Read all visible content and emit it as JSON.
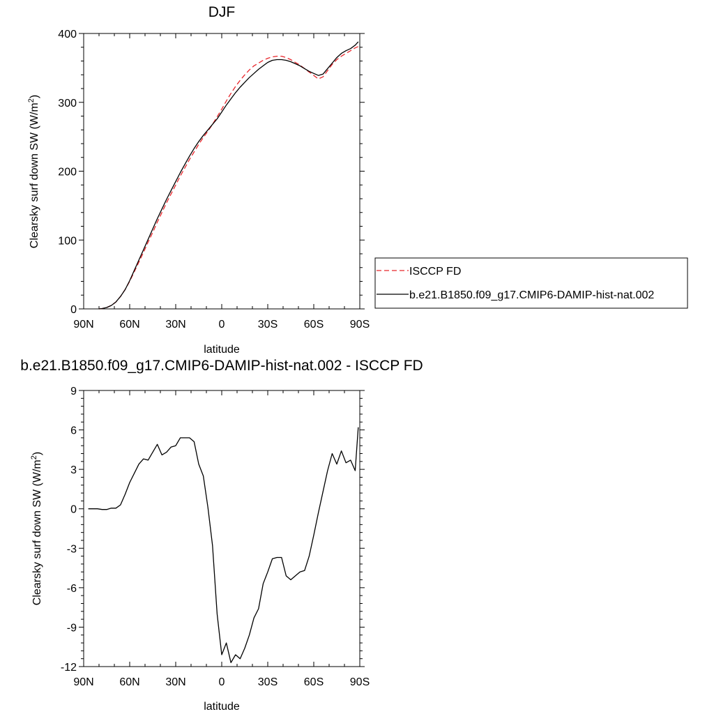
{
  "chart_data": [
    {
      "type": "line",
      "title": "DJF",
      "xlabel": "latitude",
      "ylabel": "Clearsky surf down SW (W/m",
      "ylabel_sup": "2",
      "ylabel_end": ")",
      "xlim": [
        90,
        -90
      ],
      "ylim": [
        0,
        400
      ],
      "xticks": [
        {
          "v": 90,
          "label": "90N"
        },
        {
          "v": 60,
          "label": "60N"
        },
        {
          "v": 30,
          "label": "30N"
        },
        {
          "v": 0,
          "label": "0"
        },
        {
          "v": -30,
          "label": "30S"
        },
        {
          "v": -60,
          "label": "60S"
        },
        {
          "v": -90,
          "label": "90S"
        }
      ],
      "yticks": [
        {
          "v": 0,
          "label": "0"
        },
        {
          "v": 100,
          "label": "100"
        },
        {
          "v": 200,
          "label": "200"
        },
        {
          "v": 300,
          "label": "300"
        },
        {
          "v": 400,
          "label": "400"
        }
      ],
      "legend_position": "right",
      "series": [
        {
          "name": "ISCCP FD",
          "color": "#e8262b",
          "dash": true,
          "x": [
            80,
            78,
            75,
            72,
            69,
            66,
            63,
            60,
            57,
            54,
            51,
            48,
            45,
            42,
            39,
            36,
            33,
            30,
            27,
            24,
            21,
            18,
            15,
            12,
            9,
            6,
            3,
            0,
            -3,
            -6,
            -9,
            -12,
            -15,
            -18,
            -21,
            -24,
            -27,
            -30,
            -33,
            -36,
            -39,
            -42,
            -45,
            -48,
            -51,
            -54,
            -57,
            -60,
            -63,
            -66,
            -69,
            -72,
            -75,
            -78,
            -81,
            -84,
            -87,
            -90
          ],
          "y": [
            0,
            0.5,
            2,
            5,
            10,
            18,
            28,
            40,
            54,
            68,
            82,
            97,
            111,
            126,
            140,
            154,
            167,
            180,
            193,
            205,
            217,
            228,
            239,
            249,
            258,
            268,
            279,
            290,
            302,
            313,
            323,
            332,
            340,
            347,
            353,
            357,
            361,
            364,
            366,
            367,
            367,
            365,
            362,
            358,
            354,
            349,
            344,
            339,
            334,
            337,
            346,
            355,
            362,
            367,
            371,
            375,
            379,
            382
          ]
        },
        {
          "name": "b.e21.B1850.f09_g17.CMIP6-DAMIP-hist-nat.002",
          "color": "#000000",
          "dash": false,
          "x": [
            80,
            78,
            75,
            72,
            69,
            66,
            63,
            60,
            57,
            54,
            51,
            48,
            45,
            42,
            39,
            36,
            33,
            30,
            27,
            24,
            21,
            18,
            15,
            12,
            9,
            6,
            3,
            0,
            -3,
            -6,
            -9,
            -12,
            -15,
            -18,
            -21,
            -24,
            -27,
            -30,
            -33,
            -36,
            -39,
            -42,
            -45,
            -48,
            -51,
            -54,
            -57,
            -60,
            -63,
            -66,
            -69,
            -72,
            -75,
            -78,
            -81,
            -84,
            -87,
            -89
          ],
          "y": [
            0,
            0.5,
            2,
            5,
            10,
            18,
            28,
            41,
            56,
            71,
            86,
            101,
            116,
            131,
            145,
            159,
            172,
            185,
            198,
            210,
            222,
            233,
            243,
            252,
            260,
            268,
            276,
            286,
            296,
            305,
            314,
            322,
            329,
            336,
            342,
            348,
            353,
            358,
            361,
            362,
            362,
            361,
            359,
            356,
            353,
            349,
            345,
            342,
            339,
            341,
            349,
            357,
            365,
            371,
            375,
            378,
            383,
            388
          ]
        }
      ]
    },
    {
      "type": "line",
      "title": "b.e21.B1850.f09_g17.CMIP6-DAMIP-hist-nat.002 - ISCCP FD",
      "xlabel": "latitude",
      "ylabel": "Clearsky surf down SW (W/m",
      "ylabel_sup": "2",
      "ylabel_end": ")",
      "xlim": [
        90,
        -90
      ],
      "ylim": [
        -12,
        9
      ],
      "xticks": [
        {
          "v": 90,
          "label": "90N"
        },
        {
          "v": 60,
          "label": "60N"
        },
        {
          "v": 30,
          "label": "30N"
        },
        {
          "v": 0,
          "label": "0"
        },
        {
          "v": -30,
          "label": "30S"
        },
        {
          "v": -60,
          "label": "60S"
        },
        {
          "v": -90,
          "label": "90S"
        }
      ],
      "yticks": [
        {
          "v": -12,
          "label": "-12"
        },
        {
          "v": -9,
          "label": "-9"
        },
        {
          "v": -6,
          "label": "-6"
        },
        {
          "v": -3,
          "label": "-3"
        },
        {
          "v": 0,
          "label": "0"
        },
        {
          "v": 3,
          "label": "3"
        },
        {
          "v": 6,
          "label": "6"
        },
        {
          "v": 9,
          "label": "9"
        }
      ],
      "series": [
        {
          "color": "#000000",
          "x": [
            87,
            84,
            81,
            78,
            75,
            72,
            69,
            66,
            63,
            60,
            57,
            54,
            51,
            48,
            45,
            42,
            39,
            36,
            33,
            30,
            27,
            24,
            21,
            18,
            15,
            12,
            9,
            6,
            3,
            0,
            -3,
            -6,
            -9,
            -12,
            -15,
            -18,
            -21,
            -24,
            -27,
            -30,
            -33,
            -36,
            -39,
            -42,
            -45,
            -48,
            -51,
            -54,
            -57,
            -60,
            -63,
            -66,
            -69,
            -72,
            -75,
            -78,
            -81,
            -84,
            -87,
            -89
          ],
          "y": [
            0,
            0,
            0,
            -0.05,
            -0.05,
            0.05,
            0.05,
            0.3,
            1.1,
            2.0,
            2.7,
            3.4,
            3.8,
            3.7,
            4.3,
            4.9,
            4.1,
            4.3,
            4.7,
            4.8,
            5.4,
            5.4,
            5.4,
            5.1,
            3.4,
            2.5,
            0.1,
            -2.8,
            -8.0,
            -11.1,
            -10.2,
            -11.7,
            -11.1,
            -11.4,
            -10.6,
            -9.6,
            -8.3,
            -7.6,
            -5.7,
            -4.8,
            -3.8,
            -3.7,
            -3.7,
            -5.1,
            -5.4,
            -5.1,
            -4.8,
            -4.7,
            -3.6,
            -2.0,
            -0.3,
            1.3,
            2.9,
            4.2,
            3.4,
            4.4,
            3.5,
            3.7,
            2.9,
            6.2
          ]
        }
      ]
    }
  ]
}
